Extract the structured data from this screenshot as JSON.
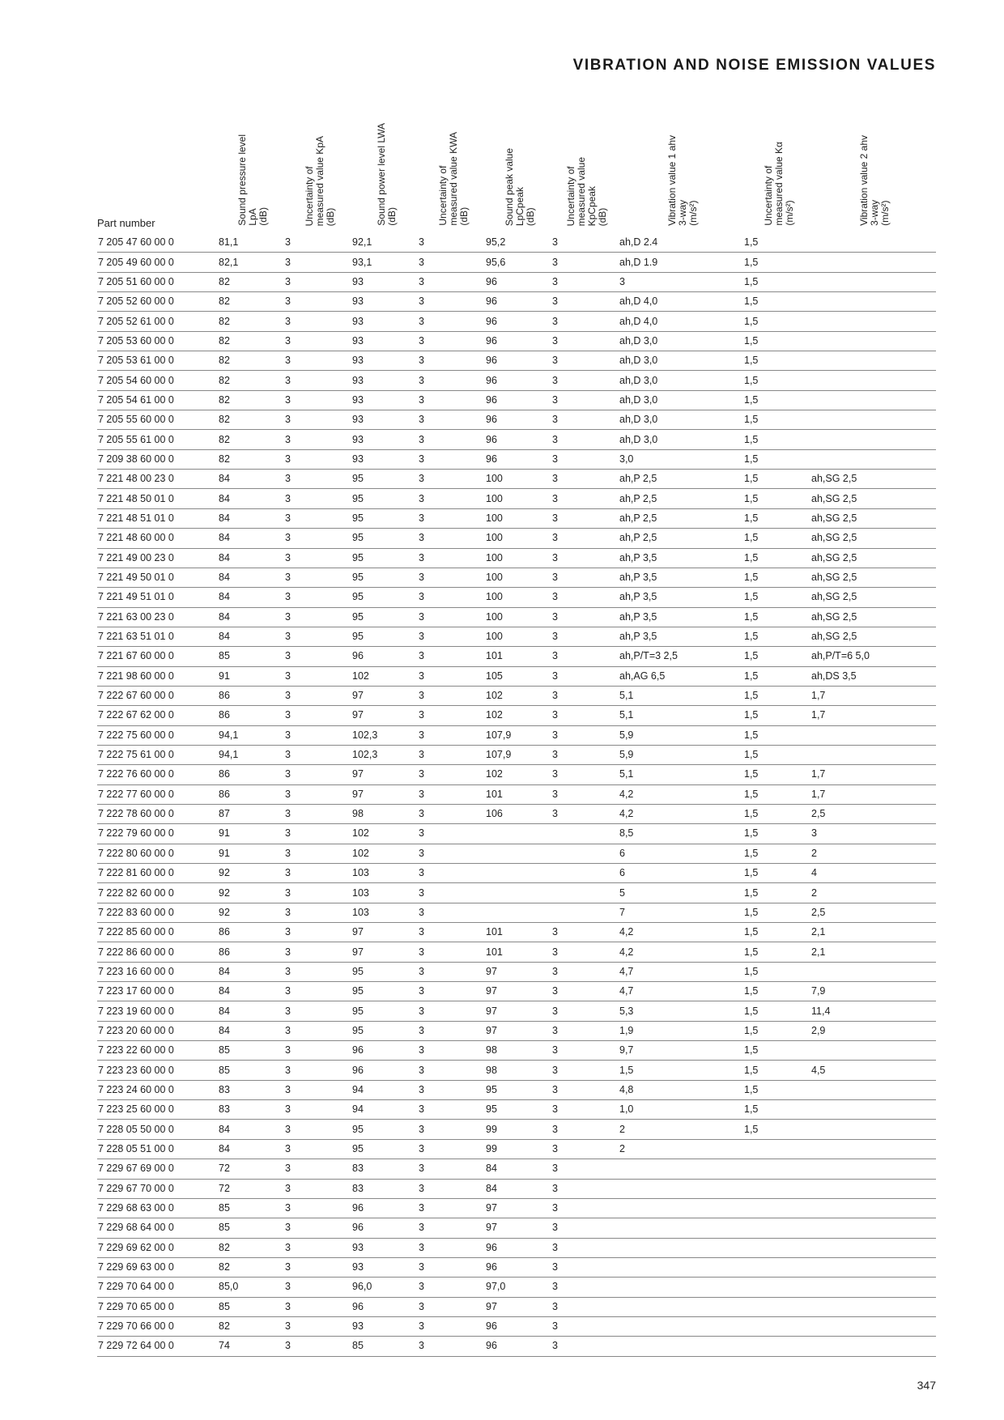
{
  "page": {
    "title": "VIBRATION AND NOISE EMISSION VALUES",
    "page_number": "347"
  },
  "table": {
    "columns": [
      "Part number",
      "Sound pressure level\nLpA\n(dB)",
      "Uncertainty of\nmeasured value KpA\n(dB)",
      "Sound power level LWA\n(dB)",
      "Uncertainty of\nmeasured value KWA\n(dB)",
      "Sound peak value\nLpCpeak\n(dB)",
      "Uncertainty of\nmeasured value\nKpCpeak\n(dB)",
      "Vibration value 1 ahv\n3-way\n(m/s²)",
      "Uncertainty of\nmeasured value Kα\n(m/s²)",
      "Vibration value 2 ahv\n3-way\n(m/s²)"
    ],
    "rows": [
      [
        "7 205 47 60 00 0",
        "81,1",
        "3",
        "92,1",
        "3",
        "95,2",
        "3",
        "ah,D 2.4",
        "1,5",
        ""
      ],
      [
        "7 205 49 60 00 0",
        "82,1",
        "3",
        "93,1",
        "3",
        "95,6",
        "3",
        "ah,D 1.9",
        "1,5",
        ""
      ],
      [
        "7 205 51 60 00 0",
        "82",
        "3",
        "93",
        "3",
        "96",
        "3",
        "3",
        "1,5",
        ""
      ],
      [
        "7 205 52 60 00 0",
        "82",
        "3",
        "93",
        "3",
        "96",
        "3",
        "ah,D 4,0",
        "1,5",
        ""
      ],
      [
        "7 205 52 61 00 0",
        "82",
        "3",
        "93",
        "3",
        "96",
        "3",
        "ah,D 4,0",
        "1,5",
        ""
      ],
      [
        "7 205 53 60 00 0",
        "82",
        "3",
        "93",
        "3",
        "96",
        "3",
        "ah,D 3,0",
        "1,5",
        ""
      ],
      [
        "7 205 53 61 00 0",
        "82",
        "3",
        "93",
        "3",
        "96",
        "3",
        "ah,D 3,0",
        "1,5",
        ""
      ],
      [
        "7 205 54 60 00 0",
        "82",
        "3",
        "93",
        "3",
        "96",
        "3",
        "ah,D 3,0",
        "1,5",
        ""
      ],
      [
        "7 205 54 61 00 0",
        "82",
        "3",
        "93",
        "3",
        "96",
        "3",
        "ah,D 3,0",
        "1,5",
        ""
      ],
      [
        "7 205 55 60 00 0",
        "82",
        "3",
        "93",
        "3",
        "96",
        "3",
        "ah,D 3,0",
        "1,5",
        ""
      ],
      [
        "7 205 55 61 00 0",
        "82",
        "3",
        "93",
        "3",
        "96",
        "3",
        "ah,D 3,0",
        "1,5",
        ""
      ],
      [
        "7 209 38 60 00 0",
        "82",
        "3",
        "93",
        "3",
        "96",
        "3",
        "3,0",
        "1,5",
        ""
      ],
      [
        "7 221 48 00 23 0",
        "84",
        "3",
        "95",
        "3",
        "100",
        "3",
        "ah,P 2,5",
        "1,5",
        "ah,SG 2,5"
      ],
      [
        "7 221 48 50 01 0",
        "84",
        "3",
        "95",
        "3",
        "100",
        "3",
        "ah,P 2,5",
        "1,5",
        "ah,SG 2,5"
      ],
      [
        "7 221 48 51 01 0",
        "84",
        "3",
        "95",
        "3",
        "100",
        "3",
        "ah,P 2,5",
        "1,5",
        "ah,SG 2,5"
      ],
      [
        "7 221 48 60 00 0",
        "84",
        "3",
        "95",
        "3",
        "100",
        "3",
        "ah,P 2,5",
        "1,5",
        "ah,SG 2,5"
      ],
      [
        "7 221 49 00 23 0",
        "84",
        "3",
        "95",
        "3",
        "100",
        "3",
        "ah,P 3,5",
        "1,5",
        "ah,SG 2,5"
      ],
      [
        "7 221 49 50 01 0",
        "84",
        "3",
        "95",
        "3",
        "100",
        "3",
        "ah,P 3,5",
        "1,5",
        "ah,SG 2,5"
      ],
      [
        "7 221 49 51 01 0",
        "84",
        "3",
        "95",
        "3",
        "100",
        "3",
        "ah,P 3,5",
        "1,5",
        "ah,SG 2,5"
      ],
      [
        "7 221 63 00 23 0",
        "84",
        "3",
        "95",
        "3",
        "100",
        "3",
        "ah,P 3,5",
        "1,5",
        "ah,SG 2,5"
      ],
      [
        "7 221 63 51 01 0",
        "84",
        "3",
        "95",
        "3",
        "100",
        "3",
        "ah,P 3,5",
        "1,5",
        "ah,SG 2,5"
      ],
      [
        "7 221 67 60 00 0",
        "85",
        "3",
        "96",
        "3",
        "101",
        "3",
        "ah,P/T=3 2,5",
        "1,5",
        "ah,P/T=6 5,0"
      ],
      [
        "7 221 98 60 00 0",
        "91",
        "3",
        "102",
        "3",
        "105",
        "3",
        "ah,AG 6,5",
        "1,5",
        "ah,DS 3,5"
      ],
      [
        "7 222 67 60 00 0",
        "86",
        "3",
        "97",
        "3",
        "102",
        "3",
        "5,1",
        "1,5",
        "1,7"
      ],
      [
        "7 222 67 62 00 0",
        "86",
        "3",
        "97",
        "3",
        "102",
        "3",
        "5,1",
        "1,5",
        "1,7"
      ],
      [
        "7 222 75 60 00 0",
        "94,1",
        "3",
        "102,3",
        "3",
        "107,9",
        "3",
        "5,9",
        "1,5",
        ""
      ],
      [
        "7 222 75 61 00 0",
        "94,1",
        "3",
        "102,3",
        "3",
        "107,9",
        "3",
        "5,9",
        "1,5",
        ""
      ],
      [
        "7 222 76 60 00 0",
        "86",
        "3",
        "97",
        "3",
        "102",
        "3",
        "5,1",
        "1,5",
        "1,7"
      ],
      [
        "7 222 77 60 00 0",
        "86",
        "3",
        "97",
        "3",
        "101",
        "3",
        "4,2",
        "1,5",
        "1,7"
      ],
      [
        "7 222 78 60 00 0",
        "87",
        "3",
        "98",
        "3",
        "106",
        "3",
        "4,2",
        "1,5",
        "2,5"
      ],
      [
        "7 222 79 60 00 0",
        "91",
        "3",
        "102",
        "3",
        "",
        "",
        "8,5",
        "1,5",
        "3"
      ],
      [
        "7 222 80 60 00 0",
        "91",
        "3",
        "102",
        "3",
        "",
        "",
        "6",
        "1,5",
        "2"
      ],
      [
        "7 222 81 60 00 0",
        "92",
        "3",
        "103",
        "3",
        "",
        "",
        "6",
        "1,5",
        "4"
      ],
      [
        "7 222 82 60 00 0",
        "92",
        "3",
        "103",
        "3",
        "",
        "",
        "5",
        "1,5",
        "2"
      ],
      [
        "7 222 83 60 00 0",
        "92",
        "3",
        "103",
        "3",
        "",
        "",
        "7",
        "1,5",
        "2,5"
      ],
      [
        "7 222 85 60 00 0",
        "86",
        "3",
        "97",
        "3",
        "101",
        "3",
        "4,2",
        "1,5",
        "2,1"
      ],
      [
        "7 222 86 60 00 0",
        "86",
        "3",
        "97",
        "3",
        "101",
        "3",
        "4,2",
        "1,5",
        "2,1"
      ],
      [
        "7 223 16 60 00 0",
        "84",
        "3",
        "95",
        "3",
        "97",
        "3",
        "4,7",
        "1,5",
        ""
      ],
      [
        "7 223 17 60 00 0",
        "84",
        "3",
        "95",
        "3",
        "97",
        "3",
        "4,7",
        "1,5",
        "7,9"
      ],
      [
        "7 223 19 60 00 0",
        "84",
        "3",
        "95",
        "3",
        "97",
        "3",
        "5,3",
        "1,5",
        "11,4"
      ],
      [
        "7 223 20 60 00 0",
        "84",
        "3",
        "95",
        "3",
        "97",
        "3",
        "1,9",
        "1,5",
        "2,9"
      ],
      [
        "7 223 22 60 00 0",
        "85",
        "3",
        "96",
        "3",
        "98",
        "3",
        "9,7",
        "1,5",
        ""
      ],
      [
        "7 223 23 60 00 0",
        "85",
        "3",
        "96",
        "3",
        "98",
        "3",
        "1,5",
        "1,5",
        "4,5"
      ],
      [
        "7 223 24 60 00 0",
        "83",
        "3",
        "94",
        "3",
        "95",
        "3",
        "4,8",
        "1,5",
        ""
      ],
      [
        "7 223 25 60 00 0",
        "83",
        "3",
        "94",
        "3",
        "95",
        "3",
        "1,0",
        "1,5",
        ""
      ],
      [
        "7 228 05 50 00 0",
        "84",
        "3",
        "95",
        "3",
        "99",
        "3",
        "2",
        "1,5",
        ""
      ],
      [
        "7 228 05 51 00 0",
        "84",
        "3",
        "95",
        "3",
        "99",
        "3",
        "2",
        "",
        ""
      ],
      [
        "7 229 67 69 00 0",
        "72",
        "3",
        "83",
        "3",
        "84",
        "3",
        "",
        "",
        ""
      ],
      [
        "7 229 67 70 00 0",
        "72",
        "3",
        "83",
        "3",
        "84",
        "3",
        "",
        "",
        ""
      ],
      [
        "7 229 68 63 00 0",
        "85",
        "3",
        "96",
        "3",
        "97",
        "3",
        "",
        "",
        ""
      ],
      [
        "7 229 68 64 00 0",
        "85",
        "3",
        "96",
        "3",
        "97",
        "3",
        "",
        "",
        ""
      ],
      [
        "7 229 69 62 00 0",
        "82",
        "3",
        "93",
        "3",
        "96",
        "3",
        "",
        "",
        ""
      ],
      [
        "7 229 69 63 00 0",
        "82",
        "3",
        "93",
        "3",
        "96",
        "3",
        "",
        "",
        ""
      ],
      [
        "7 229 70 64 00 0",
        "85,0",
        "3",
        "96,0",
        "3",
        "97,0",
        "3",
        "",
        "",
        ""
      ],
      [
        "7 229 70 65 00 0",
        "85",
        "3",
        "96",
        "3",
        "97",
        "3",
        "",
        "",
        ""
      ],
      [
        "7 229 70 66 00 0",
        "82",
        "3",
        "93",
        "3",
        "96",
        "3",
        "",
        "",
        ""
      ],
      [
        "7 229 72 64 00 0",
        "74",
        "3",
        "85",
        "3",
        "96",
        "3",
        "",
        "",
        ""
      ]
    ]
  }
}
